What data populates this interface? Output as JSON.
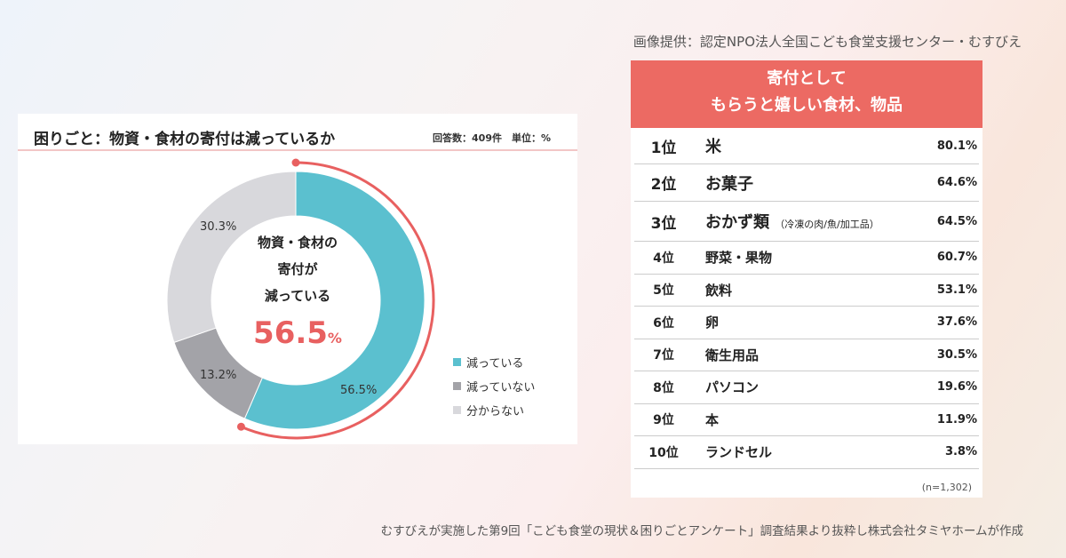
{
  "credit": "画像提供：認定NPO法人全国こども食堂支援センター・むすびえ",
  "footer": "むすびえが実施した第9回「こども食堂の現状＆困りごとアンケート」調査結果より抜粋し株式会社タミヤホームが作成",
  "chart_data": {
    "type": "pie",
    "title": "困りごと：物資・食材の寄付は減っているか",
    "meta": "回答数：409件　単位：%",
    "center_text": [
      "物資・食材の",
      "寄付が",
      "減っている"
    ],
    "center_value": "56.5",
    "center_unit": "%",
    "categories": [
      "減っている",
      "減っていない",
      "分からない"
    ],
    "values": [
      56.5,
      13.2,
      30.3
    ],
    "labels": [
      "56.5%",
      "13.2%",
      "30.3%"
    ],
    "colors": [
      "#5bc0cf",
      "#a3a3a8",
      "#d8d8dc"
    ],
    "highlight_color": "#e86060",
    "legend": "right"
  },
  "ranking": {
    "title": [
      "寄付として",
      "もらうと嬉しい食材、物品"
    ],
    "rows": [
      {
        "rank": "1位",
        "item": "米",
        "note": "",
        "pct": "80.1%"
      },
      {
        "rank": "2位",
        "item": "お菓子",
        "note": "",
        "pct": "64.6%"
      },
      {
        "rank": "3位",
        "item": "おかず類",
        "note": "（冷凍の肉/魚/加工品）",
        "pct": "64.5%"
      },
      {
        "rank": "4位",
        "item": "野菜・果物",
        "note": "",
        "pct": "60.7%"
      },
      {
        "rank": "5位",
        "item": "飲料",
        "note": "",
        "pct": "53.1%"
      },
      {
        "rank": "6位",
        "item": "卵",
        "note": "",
        "pct": "37.6%"
      },
      {
        "rank": "7位",
        "item": "衛生用品",
        "note": "",
        "pct": "30.5%"
      },
      {
        "rank": "8位",
        "item": "パソコン",
        "note": "",
        "pct": "19.6%"
      },
      {
        "rank": "9位",
        "item": "本",
        "note": "",
        "pct": "11.9%"
      },
      {
        "rank": "10位",
        "item": "ランドセル",
        "note": "",
        "pct": "3.8%"
      }
    ],
    "n": "(n=1,302)"
  }
}
